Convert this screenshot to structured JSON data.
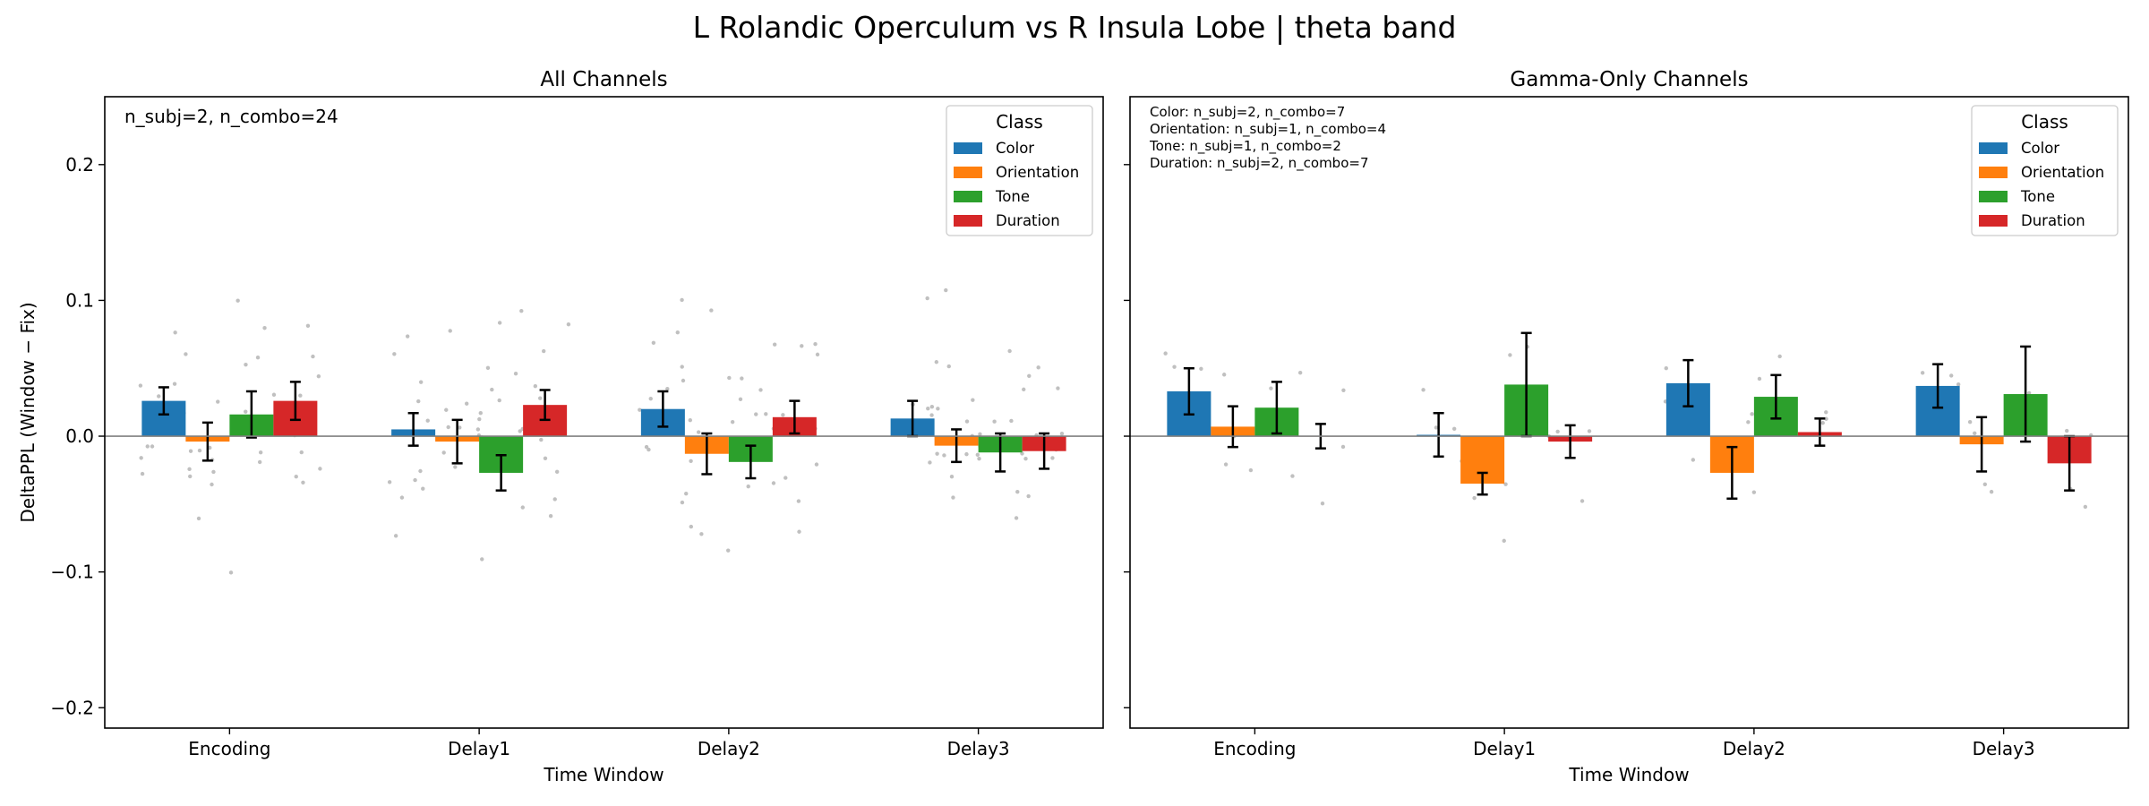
{
  "suptitle": "L Rolandic Operculum vs R Insula Lobe  |  theta band",
  "colors": {
    "Color": "#1f77b4",
    "Orientation": "#ff7f0e",
    "Tone": "#2ca02c",
    "Duration": "#d62728",
    "axis": "#000000",
    "zero_line": "#808080",
    "jitter": "#c0c0c0"
  },
  "chart_data": [
    {
      "type": "bar",
      "title": "All Channels",
      "xlabel": "Time Window",
      "ylabel": "DeltaPPL (Window − Fix)",
      "ylim": [
        -0.215,
        0.25
      ],
      "yticks": [
        -0.2,
        -0.1,
        0.0,
        0.1,
        0.2
      ],
      "ytick_labels": [
        "−0.2",
        "−0.1",
        "0.0",
        "0.1",
        "0.2"
      ],
      "categories": [
        "Encoding",
        "Delay1",
        "Delay2",
        "Delay3"
      ],
      "annotation": [
        "n_subj=2, n_combo=24"
      ],
      "legend": {
        "title": "Class",
        "position": "top-right"
      },
      "series": [
        {
          "name": "Color",
          "values": [
            0.026,
            0.005,
            0.02,
            0.013
          ],
          "err": [
            0.01,
            0.012,
            0.013,
            0.013
          ]
        },
        {
          "name": "Orientation",
          "values": [
            -0.004,
            -0.004,
            -0.013,
            -0.007
          ],
          "err": [
            0.014,
            0.016,
            0.015,
            0.012
          ]
        },
        {
          "name": "Tone",
          "values": [
            0.016,
            -0.027,
            -0.019,
            -0.012
          ],
          "err": [
            0.017,
            0.013,
            0.012,
            0.014
          ]
        },
        {
          "name": "Duration",
          "values": [
            0.026,
            0.023,
            0.014,
            -0.011
          ],
          "err": [
            0.014,
            0.011,
            0.012,
            0.013
          ]
        }
      ]
    },
    {
      "type": "bar",
      "title": "Gamma-Only Channels",
      "xlabel": "Time Window",
      "ylabel": "",
      "ylim": [
        -0.215,
        0.25
      ],
      "yticks": [
        -0.2,
        -0.1,
        0.0,
        0.1,
        0.2
      ],
      "categories": [
        "Encoding",
        "Delay1",
        "Delay2",
        "Delay3"
      ],
      "annotation": [
        "Color: n_subj=2, n_combo=7",
        "Orientation: n_subj=1, n_combo=4",
        "Tone: n_subj=1, n_combo=2",
        "Duration: n_subj=2, n_combo=7"
      ],
      "legend": {
        "title": "Class",
        "position": "top-right"
      },
      "series": [
        {
          "name": "Color",
          "values": [
            0.033,
            0.001,
            0.039,
            0.037
          ],
          "err": [
            0.017,
            0.016,
            0.017,
            0.016
          ]
        },
        {
          "name": "Orientation",
          "values": [
            0.007,
            -0.035,
            -0.027,
            -0.006
          ],
          "err": [
            0.015,
            0.008,
            0.019,
            0.02
          ]
        },
        {
          "name": "Tone",
          "values": [
            0.021,
            0.038,
            0.029,
            0.031
          ],
          "err": [
            0.019,
            0.038,
            0.016,
            0.035
          ]
        },
        {
          "name": "Duration",
          "values": [
            0.0,
            -0.004,
            0.003,
            -0.02
          ],
          "err": [
            0.009,
            0.012,
            0.01,
            0.02
          ]
        }
      ]
    }
  ]
}
